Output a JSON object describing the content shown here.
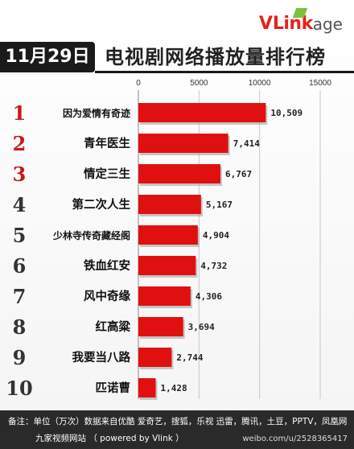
{
  "brand": {
    "name_v": "V",
    "name_link": "Link",
    "name_age": "age"
  },
  "header": {
    "date": "11月29日",
    "title": "电视剧网络播放量排行榜"
  },
  "chart_data": {
    "type": "bar",
    "orientation": "horizontal",
    "title": "电视剧网络播放量排行榜",
    "xlim": [
      0,
      15000
    ],
    "xticks": [
      "0",
      "5000",
      "10000",
      "15000"
    ],
    "categories": [
      "因为爱情有奇迹",
      "青年医生",
      "情定三生",
      "第二次人生",
      "少林寺传奇藏经阁",
      "铁血红安",
      "风中奇缘",
      "红高粱",
      "我要当八路",
      "匹诺曹"
    ],
    "ranks": [
      "1",
      "2",
      "3",
      "4",
      "5",
      "6",
      "7",
      "8",
      "9",
      "10"
    ],
    "values": [
      10509,
      7414,
      6767,
      5167,
      4904,
      4732,
      4306,
      3694,
      2744,
      1428
    ],
    "value_labels": [
      "10,509",
      "7,414",
      "6,767",
      "5,167",
      "4,904",
      "4,732",
      "4,306",
      "3,694",
      "2,744",
      "1,428"
    ],
    "bar_color": "#e01010",
    "rank1_3_color": "#c8181c",
    "rank_other_color": "#333333",
    "grid": true
  },
  "footer": {
    "line1": "备注：单位（万次）数据来自优酷 爱奇艺，搜狐，乐视  迅雷，腾讯，土豆，PPTV，凤凰网",
    "line2": "九家视频网站    （ powered by Vlink ）",
    "watermark": "weibo.com/u/2528365417"
  }
}
